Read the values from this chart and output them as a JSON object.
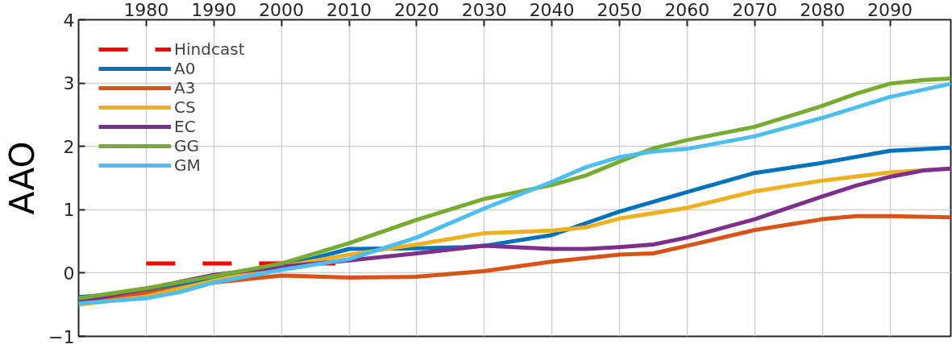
{
  "chart_data": {
    "type": "line",
    "ylabel": "AAO",
    "xlim": [
      1970,
      2099
    ],
    "ylim": [
      -1,
      4
    ],
    "xticks": [
      1980,
      1990,
      2000,
      2010,
      2020,
      2030,
      2040,
      2050,
      2060,
      2070,
      2080,
      2090
    ],
    "yticks": [
      -1,
      0,
      1,
      2,
      3,
      4
    ],
    "grid": true,
    "legend": "top left",
    "series": [
      {
        "name": "Hindcast",
        "color": "#ff0000",
        "line_style": "dashed",
        "x": [
          1980,
          2008
        ],
        "values": [
          0.15,
          0.15
        ]
      },
      {
        "name": "A0",
        "color": "#0072bd",
        "x": [
          1970,
          1980,
          1990,
          2000,
          2010,
          2020,
          2027,
          2030,
          2040,
          2050,
          2060,
          2070,
          2080,
          2090,
          2099
        ],
        "values": [
          -0.38,
          -0.3,
          -0.1,
          0.1,
          0.38,
          0.39,
          0.41,
          0.43,
          0.6,
          0.97,
          1.28,
          1.58,
          1.74,
          1.93,
          1.98
        ]
      },
      {
        "name": "A3",
        "color": "#d95319",
        "x": [
          1970,
          1980,
          1990,
          2000,
          2010,
          2020,
          2030,
          2040,
          2050,
          2055,
          2060,
          2070,
          2080,
          2085,
          2090,
          2099
        ],
        "values": [
          -0.45,
          -0.32,
          -0.15,
          -0.04,
          -0.07,
          -0.06,
          0.03,
          0.18,
          0.29,
          0.31,
          0.43,
          0.68,
          0.85,
          0.9,
          0.9,
          0.88
        ]
      },
      {
        "name": "CS",
        "color": "#edb120",
        "x": [
          1970,
          1980,
          1990,
          2000,
          2010,
          2020,
          2030,
          2040,
          2045,
          2050,
          2060,
          2070,
          2080,
          2090,
          2099
        ],
        "values": [
          -0.5,
          -0.37,
          -0.12,
          0.1,
          0.29,
          0.45,
          0.63,
          0.67,
          0.72,
          0.86,
          1.03,
          1.29,
          1.46,
          1.59,
          1.65
        ]
      },
      {
        "name": "EC",
        "color": "#7e2f8e",
        "x": [
          1970,
          1980,
          1990,
          2000,
          2010,
          2020,
          2030,
          2040,
          2045,
          2050,
          2055,
          2060,
          2070,
          2080,
          2085,
          2090,
          2095,
          2099
        ],
        "values": [
          -0.45,
          -0.25,
          -0.03,
          0.1,
          0.2,
          0.31,
          0.43,
          0.38,
          0.38,
          0.41,
          0.45,
          0.56,
          0.85,
          1.21,
          1.38,
          1.52,
          1.62,
          1.65
        ]
      },
      {
        "name": "GG",
        "color": "#77ac30",
        "x": [
          1970,
          1980,
          1990,
          2000,
          2010,
          2020,
          2030,
          2040,
          2045,
          2050,
          2055,
          2060,
          2070,
          2080,
          2085,
          2090,
          2095,
          2099
        ],
        "values": [
          -0.4,
          -0.24,
          -0.05,
          0.15,
          0.47,
          0.84,
          1.17,
          1.39,
          1.54,
          1.76,
          1.97,
          2.1,
          2.31,
          2.64,
          2.83,
          2.99,
          3.05,
          3.07
        ]
      },
      {
        "name": "GM",
        "color": "#4dbeee",
        "x": [
          1970,
          1980,
          1985,
          1990,
          2000,
          2010,
          2020,
          2030,
          2040,
          2045,
          2050,
          2055,
          2060,
          2070,
          2080,
          2090,
          2099
        ],
        "values": [
          -0.48,
          -0.4,
          -0.3,
          -0.15,
          0.05,
          0.22,
          0.56,
          1.02,
          1.44,
          1.67,
          1.83,
          1.92,
          1.96,
          2.16,
          2.45,
          2.78,
          2.99
        ]
      }
    ]
  }
}
